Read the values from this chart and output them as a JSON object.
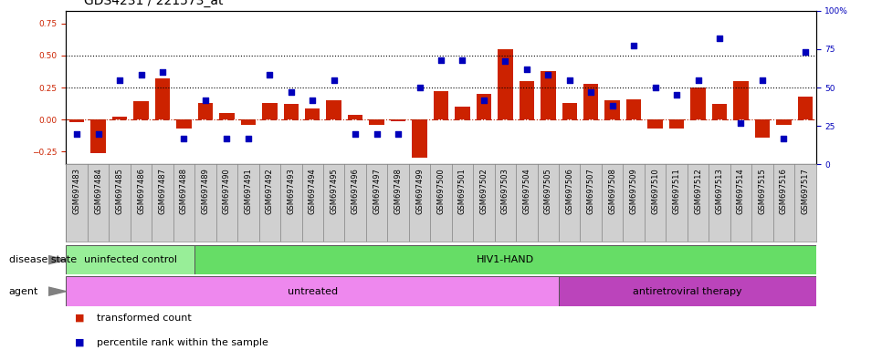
{
  "title": "GDS4231 / 221573_at",
  "samples": [
    "GSM697483",
    "GSM697484",
    "GSM697485",
    "GSM697486",
    "GSM697487",
    "GSM697488",
    "GSM697489",
    "GSM697490",
    "GSM697491",
    "GSM697492",
    "GSM697493",
    "GSM697494",
    "GSM697495",
    "GSM697496",
    "GSM697497",
    "GSM697498",
    "GSM697499",
    "GSM697500",
    "GSM697501",
    "GSM697502",
    "GSM697503",
    "GSM697504",
    "GSM697505",
    "GSM697506",
    "GSM697507",
    "GSM697508",
    "GSM697509",
    "GSM697510",
    "GSM697511",
    "GSM697512",
    "GSM697513",
    "GSM697514",
    "GSM697515",
    "GSM697516",
    "GSM697517"
  ],
  "bar_values": [
    -0.02,
    -0.26,
    0.02,
    0.14,
    0.32,
    -0.07,
    0.13,
    0.05,
    -0.04,
    0.13,
    0.12,
    0.09,
    0.15,
    0.04,
    -0.04,
    -0.01,
    -0.3,
    0.22,
    0.1,
    0.2,
    0.55,
    0.3,
    0.38,
    0.13,
    0.28,
    0.15,
    0.16,
    -0.07,
    -0.07,
    0.25,
    0.12,
    0.3,
    -0.14,
    -0.04,
    0.18
  ],
  "dot_values_pct": [
    20,
    20,
    55,
    58,
    60,
    17,
    42,
    17,
    17,
    58,
    47,
    42,
    55,
    20,
    20,
    20,
    50,
    68,
    68,
    42,
    67,
    62,
    58,
    55,
    47,
    38,
    77,
    50,
    45,
    55,
    82,
    27,
    55,
    17,
    73
  ],
  "disease_state_regions": [
    {
      "label": "uninfected control",
      "start": 0,
      "end": 6,
      "color": "#98EE98"
    },
    {
      "label": "HIV1-HAND",
      "start": 6,
      "end": 35,
      "color": "#66DD66"
    }
  ],
  "agent_regions": [
    {
      "label": "untreated",
      "start": 0,
      "end": 23,
      "color": "#EE88EE"
    },
    {
      "label": "antiretroviral therapy",
      "start": 23,
      "end": 35,
      "color": "#BB44BB"
    }
  ],
  "bar_color": "#CC2200",
  "dot_color": "#0000BB",
  "ylim_left": [
    -0.35,
    0.85
  ],
  "ylim_right": [
    0,
    100
  ],
  "yticks_left": [
    -0.25,
    0.0,
    0.25,
    0.5,
    0.75
  ],
  "yticks_right": [
    0,
    25,
    50,
    75,
    100
  ],
  "hline_y": [
    0.25,
    0.5
  ],
  "zero_line_color": "#BB2200",
  "hline_color": "black",
  "xtick_bg_color": "#D0D0D0",
  "title_fontsize": 10,
  "tick_fontsize": 6.5,
  "xtick_fontsize": 6,
  "label_fontsize": 8,
  "annotation_fontsize": 8
}
